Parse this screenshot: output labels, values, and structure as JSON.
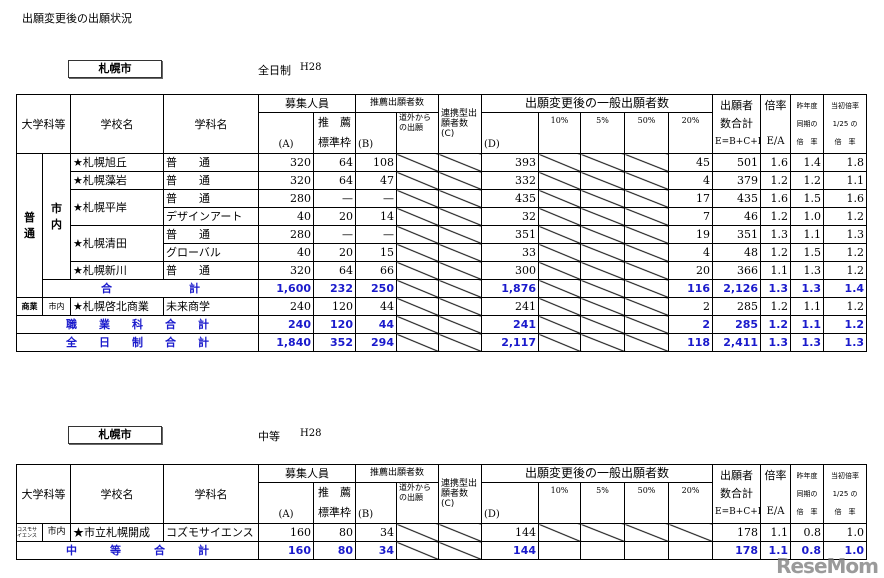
{
  "page_title": "出願変更後の出願状況",
  "headers": {
    "category": "大学科等",
    "school": "学校名",
    "dept": "学科名",
    "capacity": "募集人員",
    "a": "(A)",
    "rec_quota_1": "推　薦",
    "rec_quota_2": "標準枠",
    "rec_applicants": "推薦出願者数",
    "b": "(B)",
    "outside": "道外からの出願",
    "linked": "連携型出願者数(C)",
    "general": "出願変更後の一般出願者数",
    "d": "(D)",
    "p10": "10%",
    "p5": "5%",
    "p50": "50%",
    "p20": "20%",
    "total_1": "出願者",
    "total_2": "数合計",
    "total_3": "E=B+C+D",
    "ratio_1": "倍率",
    "ratio_2": "E/A",
    "last_1": "昨年度",
    "last_2": "同期の",
    "last_3": "倍　率",
    "init_1": "当初倍率",
    "init_2": "1/25 の",
    "init_3": "倍　率"
  },
  "section1": {
    "city": "札幌市",
    "type": "全日制",
    "year": "H28",
    "category": "普　通",
    "area": "市　内",
    "rows": [
      {
        "school": "★札幌旭丘",
        "dept": "普　　通",
        "a": "320",
        "rec": "64",
        "b": "108",
        "d": "393",
        "p20": "45",
        "e": "501",
        "ratio": "1.6",
        "last": "1.4",
        "init": "1.8"
      },
      {
        "school": "★札幌藻岩",
        "dept": "普　　通",
        "a": "320",
        "rec": "64",
        "b": "47",
        "d": "332",
        "p20": "4",
        "e": "379",
        "ratio": "1.2",
        "last": "1.2",
        "init": "1.1"
      },
      {
        "school": "★札幌平岸",
        "dept": "普　　通",
        "a": "280",
        "rec": "—",
        "b": "—",
        "d": "435",
        "p20": "17",
        "e": "435",
        "ratio": "1.6",
        "last": "1.5",
        "init": "1.6"
      },
      {
        "school": "",
        "dept": "デザインアート",
        "a": "40",
        "rec": "20",
        "b": "14",
        "d": "32",
        "p20": "7",
        "e": "46",
        "ratio": "1.2",
        "last": "1.0",
        "init": "1.2"
      },
      {
        "school": "★札幌清田",
        "dept": "普　　通",
        "a": "280",
        "rec": "—",
        "b": "—",
        "d": "351",
        "p20": "19",
        "e": "351",
        "ratio": "1.3",
        "last": "1.1",
        "init": "1.3"
      },
      {
        "school": "",
        "dept": "グローバル",
        "a": "40",
        "rec": "20",
        "b": "15",
        "d": "33",
        "p20": "4",
        "e": "48",
        "ratio": "1.2",
        "last": "1.5",
        "init": "1.2"
      },
      {
        "school": "★札幌新川",
        "dept": "普　　通",
        "a": "320",
        "rec": "64",
        "b": "66",
        "d": "300",
        "p20": "20",
        "e": "366",
        "ratio": "1.1",
        "last": "1.3",
        "init": "1.2"
      }
    ],
    "subtotal": {
      "label": "合　　　　　　　計",
      "a": "1,600",
      "rec": "232",
      "b": "250",
      "d": "1,876",
      "p20": "116",
      "e": "2,126",
      "ratio": "1.3",
      "last": "1.3",
      "init": "1.4"
    },
    "commerce": {
      "category": "商業",
      "area": "市内",
      "school": "★札幌啓北商業",
      "dept": "未来商学",
      "a": "240",
      "rec": "120",
      "b": "44",
      "d": "241",
      "p20": "2",
      "e": "285",
      "ratio": "1.2",
      "last": "1.1",
      "init": "1.2"
    },
    "vocational_total": {
      "label": "職　　業　　科　　合　　計",
      "a": "240",
      "rec": "120",
      "b": "44",
      "d": "241",
      "p20": "2",
      "e": "285",
      "ratio": "1.2",
      "last": "1.1",
      "init": "1.2"
    },
    "grand_total": {
      "label": "全　　日　　制　　合　　計",
      "a": "1,840",
      "rec": "352",
      "b": "294",
      "d": "2,117",
      "p20": "118",
      "e": "2,411",
      "ratio": "1.3",
      "last": "1.3",
      "init": "1.3"
    }
  },
  "section2": {
    "city": "札幌市",
    "type": "中等",
    "year": "H28",
    "row": {
      "category": "コスモサイエンス",
      "area": "市内",
      "school": "★市立札幌開成",
      "dept": "コズモサイエンス",
      "a": "160",
      "rec": "80",
      "b": "34",
      "d": "144",
      "e": "178",
      "ratio": "1.1",
      "last": "0.8",
      "init": "1.0"
    },
    "total": {
      "label": "中　　　等　　　合　　　計",
      "a": "160",
      "rec": "80",
      "b": "34",
      "d": "144",
      "e": "178",
      "ratio": "1.1",
      "last": "0.8",
      "init": "1.0"
    }
  },
  "watermark": "ReseMom",
  "colors": {
    "total_text": "#1a1acc",
    "border": "#000000"
  }
}
